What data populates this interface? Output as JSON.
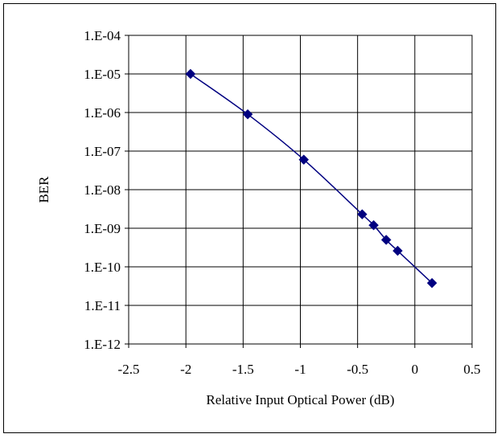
{
  "chart_data": {
    "type": "scatter",
    "title": "",
    "xlabel": "Relative Input Optical Power (dB)",
    "ylabel": "BER",
    "x_scale": "linear",
    "y_scale": "log",
    "xlim": [
      -2.5,
      0.5
    ],
    "ylim": [
      1e-12,
      0.0001
    ],
    "x_ticks": [
      -2.5,
      -2,
      -1.5,
      -1,
      -0.5,
      0,
      0.5
    ],
    "x_tick_labels": [
      "-2.5",
      "-2",
      "-1.5",
      "-1",
      "-0.5",
      "0",
      "0.5"
    ],
    "y_ticks": [
      0.0001,
      1e-05,
      1e-06,
      1e-07,
      1e-08,
      1e-09,
      1e-10,
      1e-11,
      1e-12
    ],
    "y_tick_labels": [
      "1.E-04",
      "1.E-05",
      "1.E-06",
      "1.E-07",
      "1.E-08",
      "1.E-09",
      "1.E-10",
      "1.E-11",
      "1.E-12"
    ],
    "grid": true,
    "legend": "none",
    "series": [
      {
        "marker": "diamond",
        "color": "#000080",
        "line": "smooth",
        "x": [
          -1.96,
          -1.46,
          -0.97,
          -0.46,
          -0.36,
          -0.25,
          -0.15,
          0.15
        ],
        "y": [
          1e-05,
          9e-07,
          6e-08,
          2.3e-09,
          1.2e-09,
          5e-10,
          2.6e-10,
          3.8e-11
        ]
      }
    ]
  }
}
